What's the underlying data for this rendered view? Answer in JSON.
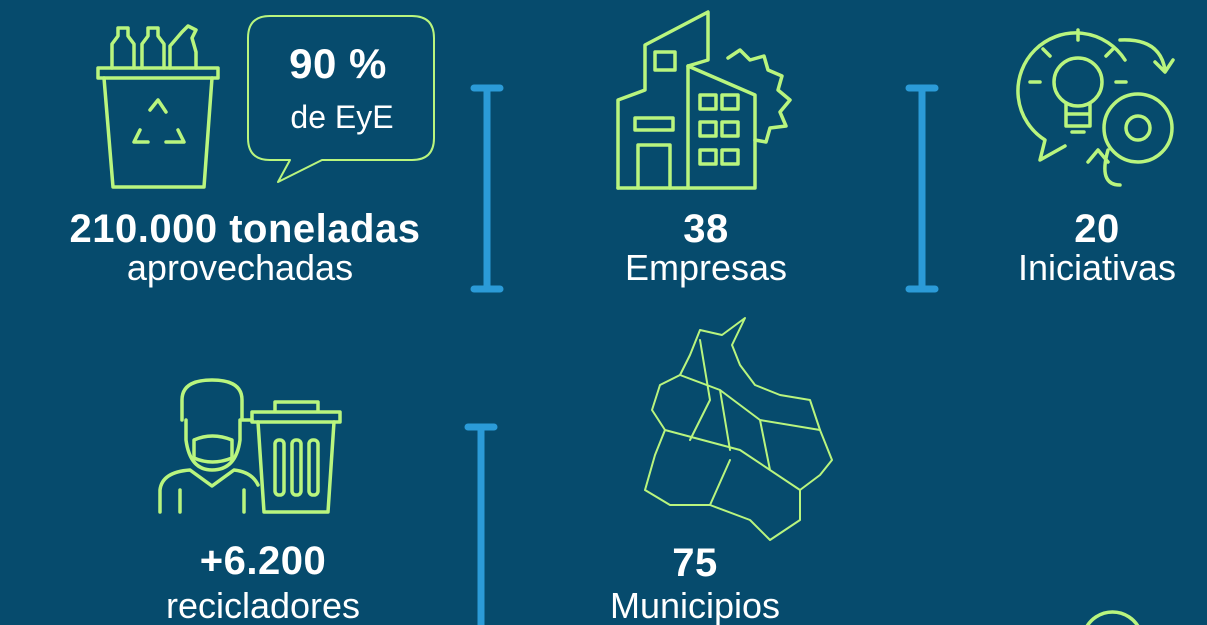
{
  "bubble": {
    "value": "90 %",
    "label": "de EyE"
  },
  "stats": [
    {
      "value": "210.000 toneladas",
      "label": "aprovechadas"
    },
    {
      "value": "38",
      "label": "Empresas"
    },
    {
      "value": "20",
      "label": "Iniciativas"
    },
    {
      "value": "+6.200",
      "label": "recicladores"
    },
    {
      "value": "75",
      "label": "Municipios"
    }
  ]
}
